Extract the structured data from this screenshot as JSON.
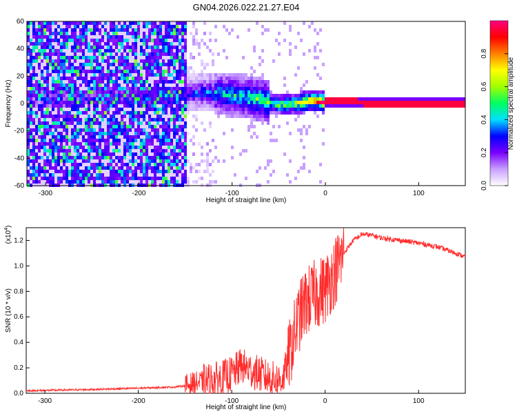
{
  "title": "GN04.2026.022.21.27.E04",
  "colors": {
    "trace": "#ff2d2d",
    "background": "#ffffff",
    "axis": "#000000"
  },
  "chart_data": [
    {
      "type": "heatmap",
      "xlabel": "Height of straight line (km)",
      "ylabel": "Frequency (Hz)",
      "xlim": [
        -320,
        150
      ],
      "ylim": [
        -60,
        60
      ],
      "x_ticks": [
        -300,
        -200,
        -100,
        0,
        100
      ],
      "y_ticks": [
        -60,
        -40,
        -20,
        0,
        20,
        40,
        60
      ],
      "colorbar": {
        "label": "Normalized spectral amplitude",
        "range": [
          0,
          1
        ],
        "ticks": [
          0.0,
          0.2,
          0.4,
          0.6,
          0.8
        ],
        "colormap": [
          "#ffffff",
          "#c8a0ff",
          "#7a00ff",
          "#0000ff",
          "#00e0ff",
          "#00ff60",
          "#a0ff00",
          "#ffff00",
          "#ff8000",
          "#ff0000",
          "#ff0080"
        ]
      },
      "ridge": [
        {
          "x": -320,
          "f": 3,
          "a": 0.15
        },
        {
          "x": -250,
          "f": 5,
          "a": 0.2
        },
        {
          "x": -200,
          "f": 6,
          "a": 0.22
        },
        {
          "x": -150,
          "f": 7,
          "a": 0.3
        },
        {
          "x": -130,
          "f": 8,
          "a": 0.4
        },
        {
          "x": -110,
          "f": 7,
          "a": 0.45
        },
        {
          "x": -90,
          "f": 5,
          "a": 0.5
        },
        {
          "x": -70,
          "f": 3,
          "a": 0.55
        },
        {
          "x": -50,
          "f": -1,
          "a": 0.6
        },
        {
          "x": -30,
          "f": 0,
          "a": 0.7
        },
        {
          "x": -15,
          "f": 2,
          "a": 0.85
        },
        {
          "x": 0,
          "f": 1,
          "a": 0.95
        },
        {
          "x": 150,
          "f": 0,
          "a": 0.95
        }
      ]
    },
    {
      "type": "line",
      "xlabel": "Height of straight line (km)",
      "ylabel": "SNR (10 * v/v)",
      "y_multiplier": "(x10",
      "y_multiplier_exp": "4",
      "y_multiplier_close": ")",
      "xlim": [
        -320,
        150
      ],
      "ylim": [
        0,
        1.3
      ],
      "x_ticks": [
        -300,
        -200,
        -100,
        0,
        100
      ],
      "y_ticks": [
        0.0,
        0.2,
        0.4,
        0.6,
        0.8,
        1.0,
        1.2
      ],
      "series": [
        {
          "x": [
            -320,
            -250,
            -200,
            -160,
            -150,
            -140,
            -130,
            -120,
            -110,
            -100,
            -95,
            -90,
            -80,
            -70,
            -60,
            -50,
            -45,
            -40,
            -35,
            -30,
            -25,
            -20,
            -15,
            -10,
            -5,
            0,
            10,
            20,
            30,
            40,
            50,
            60,
            80,
            100,
            120,
            140,
            150
          ],
          "y": [
            0.02,
            0.03,
            0.04,
            0.05,
            0.06,
            0.08,
            0.09,
            0.1,
            0.12,
            0.15,
            0.18,
            0.22,
            0.18,
            0.15,
            0.12,
            0.1,
            0.12,
            0.25,
            0.4,
            0.55,
            0.65,
            0.72,
            0.75,
            0.78,
            0.8,
            0.82,
            0.95,
            1.1,
            1.2,
            1.25,
            1.24,
            1.22,
            1.2,
            1.18,
            1.15,
            1.1,
            1.07
          ]
        }
      ]
    }
  ]
}
